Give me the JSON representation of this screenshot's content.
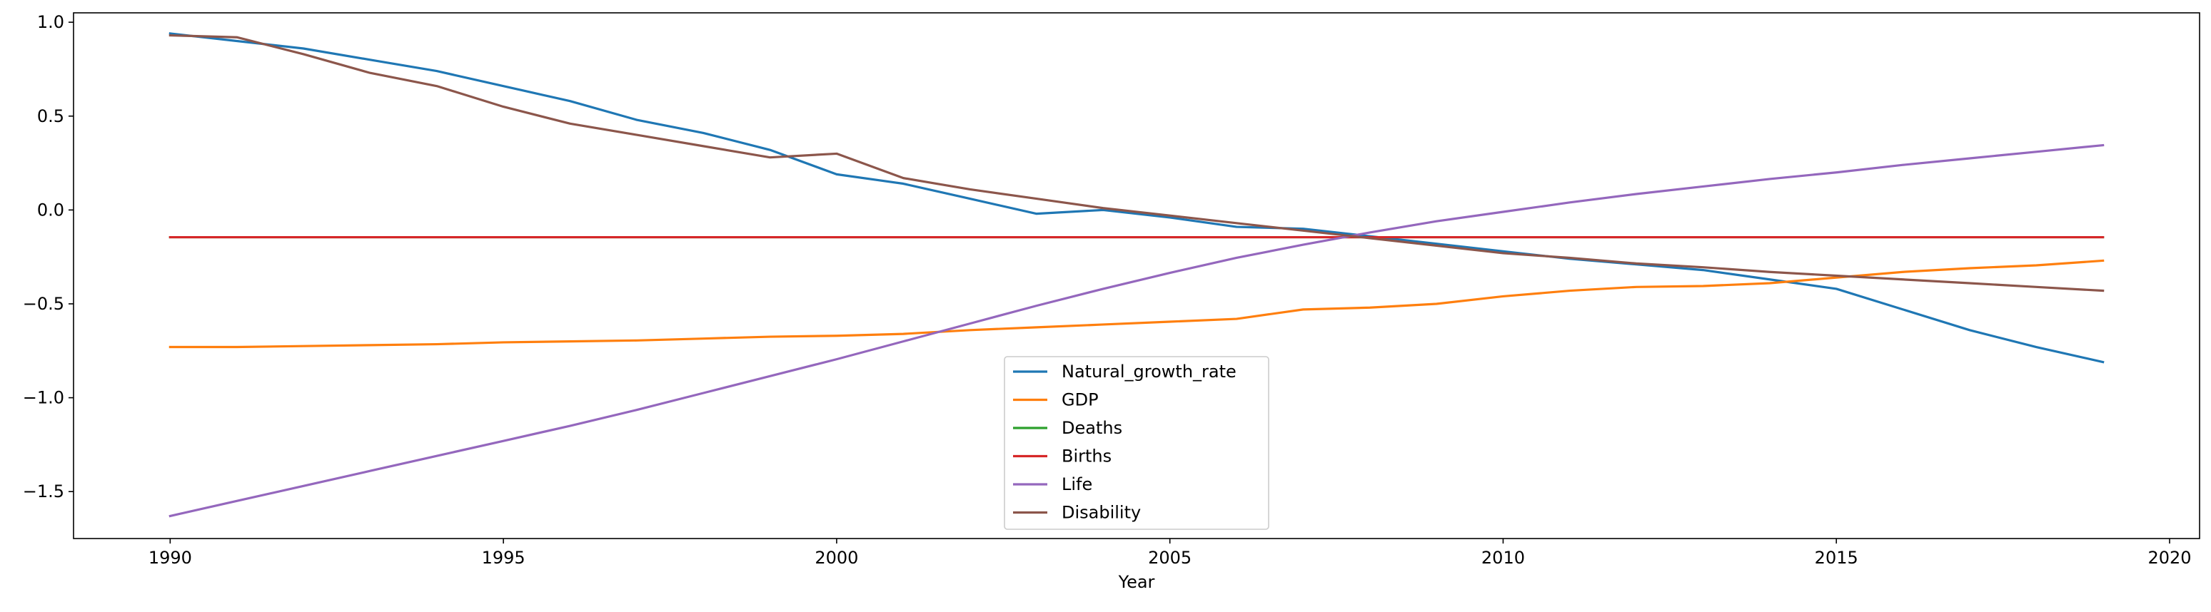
{
  "chart_data": {
    "type": "line",
    "title": "",
    "xlabel": "Year",
    "ylabel": "",
    "xlim": [
      1988.55,
      2020.45
    ],
    "ylim": [
      -1.75,
      1.05
    ],
    "x_ticks": [
      1990,
      1995,
      2000,
      2005,
      2010,
      2015,
      2020
    ],
    "y_ticks": [
      -1.5,
      -1.0,
      -0.5,
      0.0,
      0.5,
      1.0
    ],
    "y_tick_labels": [
      "−1.5",
      "−1.0",
      "−0.5",
      "0.0",
      "0.5",
      "1.0"
    ],
    "grid": false,
    "legend": "lower-center",
    "x": [
      1990,
      1991,
      1992,
      1993,
      1994,
      1995,
      1996,
      1997,
      1998,
      1999,
      2000,
      2001,
      2002,
      2003,
      2004,
      2005,
      2006,
      2007,
      2008,
      2009,
      2010,
      2011,
      2012,
      2013,
      2014,
      2015,
      2016,
      2017,
      2018,
      2019
    ],
    "series": [
      {
        "name": "Natural_growth_rate",
        "color": "#1f77b4",
        "values": [
          0.94,
          0.9,
          0.86,
          0.8,
          0.74,
          0.66,
          0.58,
          0.48,
          0.41,
          0.32,
          0.19,
          0.14,
          0.06,
          -0.02,
          0.0,
          -0.04,
          -0.09,
          -0.1,
          -0.14,
          -0.18,
          -0.22,
          -0.26,
          -0.29,
          -0.32,
          -0.37,
          -0.42,
          -0.53,
          -0.64,
          -0.73,
          -0.81
        ]
      },
      {
        "name": "GDP",
        "color": "#ff7f0e",
        "values": [
          -0.73,
          -0.73,
          -0.725,
          -0.72,
          -0.715,
          -0.705,
          -0.7,
          -0.695,
          -0.685,
          -0.675,
          -0.67,
          -0.66,
          -0.64,
          -0.625,
          -0.61,
          -0.595,
          -0.58,
          -0.53,
          -0.52,
          -0.5,
          -0.46,
          -0.43,
          -0.41,
          -0.405,
          -0.39,
          -0.36,
          -0.33,
          -0.31,
          -0.295,
          -0.27
        ]
      },
      {
        "name": "Deaths",
        "color": "#2ca02c",
        "values": [
          -0.145,
          -0.145,
          -0.145,
          -0.145,
          -0.145,
          -0.145,
          -0.145,
          -0.145,
          -0.145,
          -0.145,
          -0.145,
          -0.145,
          -0.145,
          -0.145,
          -0.145,
          -0.145,
          -0.145,
          -0.145,
          -0.145,
          -0.145,
          -0.145,
          -0.145,
          -0.145,
          -0.145,
          -0.145,
          -0.145,
          -0.145,
          -0.145,
          -0.145,
          -0.145
        ]
      },
      {
        "name": "Births",
        "color": "#d62728",
        "values": [
          -0.145,
          -0.145,
          -0.145,
          -0.145,
          -0.145,
          -0.145,
          -0.145,
          -0.145,
          -0.145,
          -0.145,
          -0.145,
          -0.145,
          -0.145,
          -0.145,
          -0.145,
          -0.145,
          -0.145,
          -0.145,
          -0.145,
          -0.145,
          -0.145,
          -0.145,
          -0.145,
          -0.145,
          -0.145,
          -0.145,
          -0.145,
          -0.145,
          -0.145,
          -0.145
        ]
      },
      {
        "name": "Life",
        "color": "#9467bd",
        "values": [
          -1.63,
          -1.55,
          -1.47,
          -1.39,
          -1.31,
          -1.23,
          -1.15,
          -1.065,
          -0.975,
          -0.885,
          -0.795,
          -0.7,
          -0.605,
          -0.51,
          -0.42,
          -0.335,
          -0.255,
          -0.185,
          -0.12,
          -0.06,
          -0.01,
          0.04,
          0.085,
          0.125,
          0.165,
          0.2,
          0.24,
          0.275,
          0.31,
          0.345
        ]
      },
      {
        "name": "Disability",
        "color": "#8c564b",
        "values": [
          0.93,
          0.92,
          0.83,
          0.73,
          0.66,
          0.55,
          0.46,
          0.4,
          0.34,
          0.28,
          0.3,
          0.17,
          0.11,
          0.06,
          0.01,
          -0.03,
          -0.07,
          -0.11,
          -0.15,
          -0.19,
          -0.23,
          -0.255,
          -0.285,
          -0.305,
          -0.33,
          -0.35,
          -0.37,
          -0.39,
          -0.41,
          -0.43
        ]
      }
    ]
  }
}
